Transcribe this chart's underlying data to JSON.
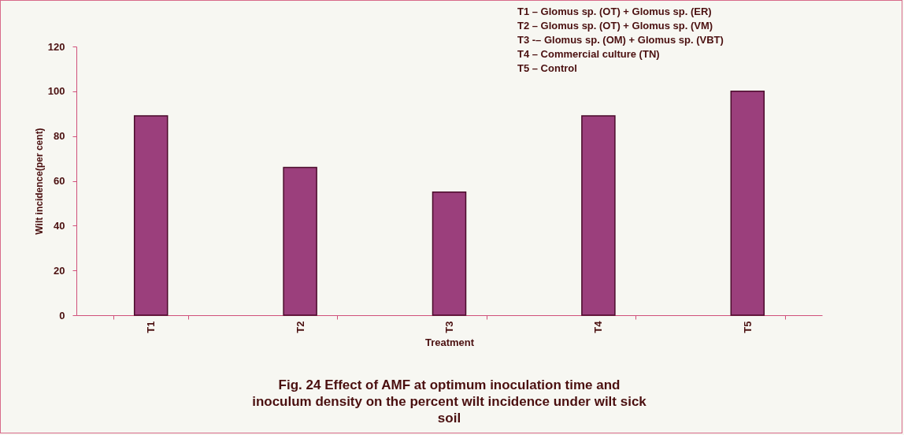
{
  "chart_data": {
    "type": "bar",
    "title": "Fig. 24  Effect of AMF at optimum inoculation time and inoculum density on the percent wilt incidence under wilt sick soil",
    "xlabel": "Treatment",
    "ylabel": "Wilt incidence(per cent)",
    "categories": [
      "T1",
      "T2",
      "T3",
      "T4",
      "T5"
    ],
    "values": [
      89,
      66,
      55,
      89,
      100
    ],
    "color": "#9b3f7c",
    "ylim": [
      0,
      120
    ],
    "yticks": [
      0,
      20,
      40,
      60,
      80,
      100,
      120
    ],
    "grid": false,
    "annotations": [
      "T1 – Glomus sp. (OT) + Glomus sp. (ER)",
      "T2 – Glomus sp. (OT) + Glomus sp. (VM)",
      "T3 -– Glomus sp. (OM) + Glomus sp. (VBT)",
      "T4 – Commercial culture (TN)",
      "T5 – Control"
    ]
  }
}
